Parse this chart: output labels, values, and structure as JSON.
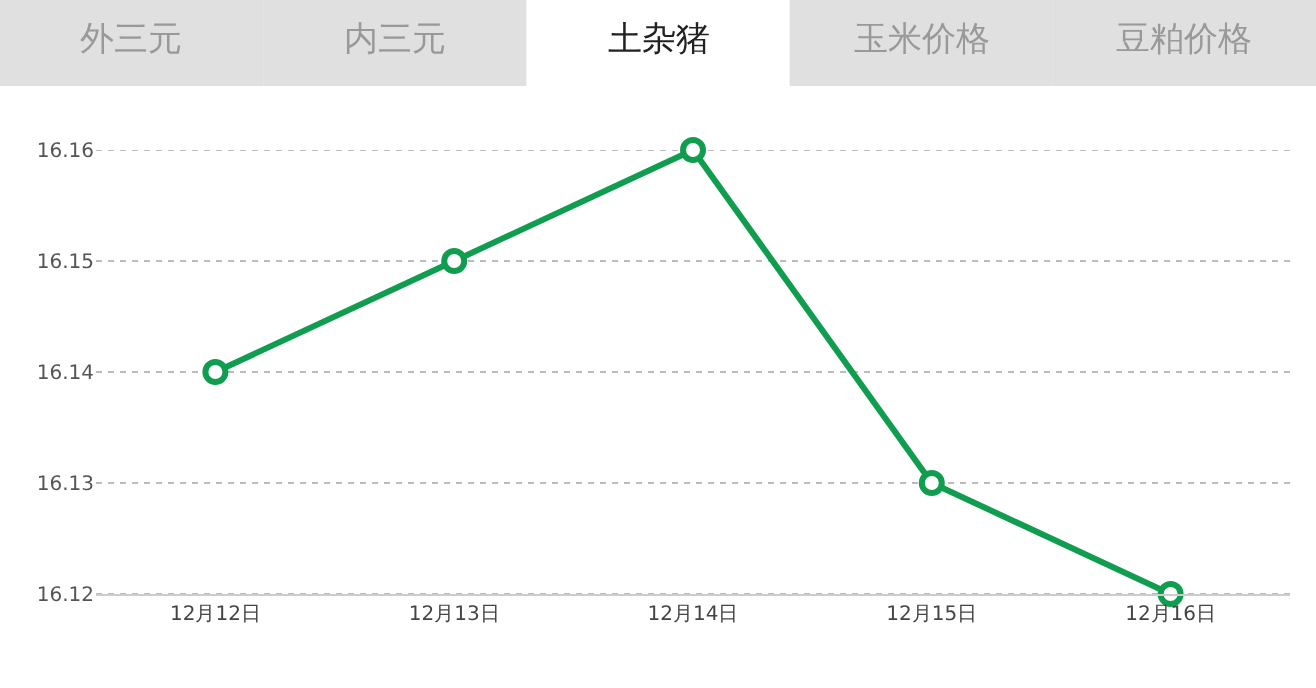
{
  "chart_data": {
    "type": "line",
    "categories": [
      "12月12日",
      "12月13日",
      "12月14日",
      "12月15日",
      "12月16日"
    ],
    "series": [
      {
        "color": "#109d4f",
        "values": [
          16.14,
          16.15,
          16.16,
          16.13,
          16.12
        ]
      }
    ],
    "ylim": [
      16.12,
      16.16
    ],
    "yticks": [
      16.12,
      16.13,
      16.14,
      16.15,
      16.16
    ],
    "grid": "y",
    "marker": "circle",
    "line_style": "solid",
    "annotations": [
      "外三元",
      "内三元",
      "土杂猪",
      "玉米价格",
      "豆粕价格"
    ]
  }
}
